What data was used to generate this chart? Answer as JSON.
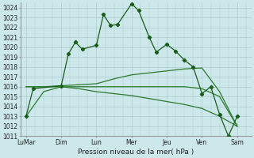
{
  "background_color": "#cce8ea",
  "grid_color": "#aacccc",
  "line_color_main": "#1a5c1a",
  "line_color_smooth": "#2d7a2d",
  "ylim": [
    1011,
    1024.5
  ],
  "ytick_min": 1011,
  "ytick_max": 1024,
  "xlabel": "Pression niveau de la mer( hPa )",
  "xtick_labels": [
    "LuMar",
    "Dim",
    "Lun",
    "Mer",
    "Jeu",
    "Ven",
    "Sam"
  ],
  "xtick_positions": [
    0,
    2,
    4,
    6,
    8,
    10,
    12
  ],
  "xlim": [
    -0.3,
    12.8
  ],
  "series1_x": [
    0,
    0.4,
    2.0,
    2.4,
    2.8,
    3.2,
    4.0,
    4.4,
    4.8,
    5.2,
    6.0,
    6.4,
    7.0,
    7.4,
    8.0,
    8.5,
    9.0,
    9.5,
    10.0,
    10.5,
    11.0,
    11.5,
    12.0
  ],
  "series1_y": [
    1013.0,
    1015.8,
    1016.1,
    1019.3,
    1020.5,
    1019.8,
    1020.2,
    1023.3,
    1022.2,
    1022.3,
    1024.4,
    1023.7,
    1021.0,
    1019.5,
    1020.3,
    1019.6,
    1018.7,
    1018.0,
    1015.3,
    1016.0,
    1013.2,
    1011.0,
    1013.0
  ],
  "series2_x": [
    0,
    1,
    2,
    3,
    4,
    5,
    6,
    7,
    8,
    9,
    10,
    11,
    12
  ],
  "series2_y": [
    1016.0,
    1016.0,
    1016.1,
    1016.2,
    1016.3,
    1016.8,
    1017.2,
    1017.4,
    1017.6,
    1017.8,
    1017.9,
    1015.5,
    1012.0
  ],
  "series3_x": [
    0,
    1,
    2,
    3,
    4,
    5,
    6,
    7,
    8,
    9,
    10,
    11,
    12
  ],
  "series3_y": [
    1016.0,
    1016.0,
    1016.0,
    1015.8,
    1015.5,
    1015.3,
    1015.1,
    1014.8,
    1014.5,
    1014.2,
    1013.8,
    1013.0,
    1012.0
  ],
  "series4_x": [
    0,
    1,
    2,
    3,
    4,
    5,
    6,
    7,
    8,
    9,
    10,
    11,
    12
  ],
  "series4_y": [
    1013.0,
    1015.5,
    1016.0,
    1016.0,
    1016.0,
    1016.0,
    1016.0,
    1016.0,
    1016.0,
    1016.0,
    1015.8,
    1015.0,
    1012.0
  ],
  "label_fontsize": 5.5,
  "xlabel_fontsize": 6.5,
  "tick_fontsize": 5.5
}
